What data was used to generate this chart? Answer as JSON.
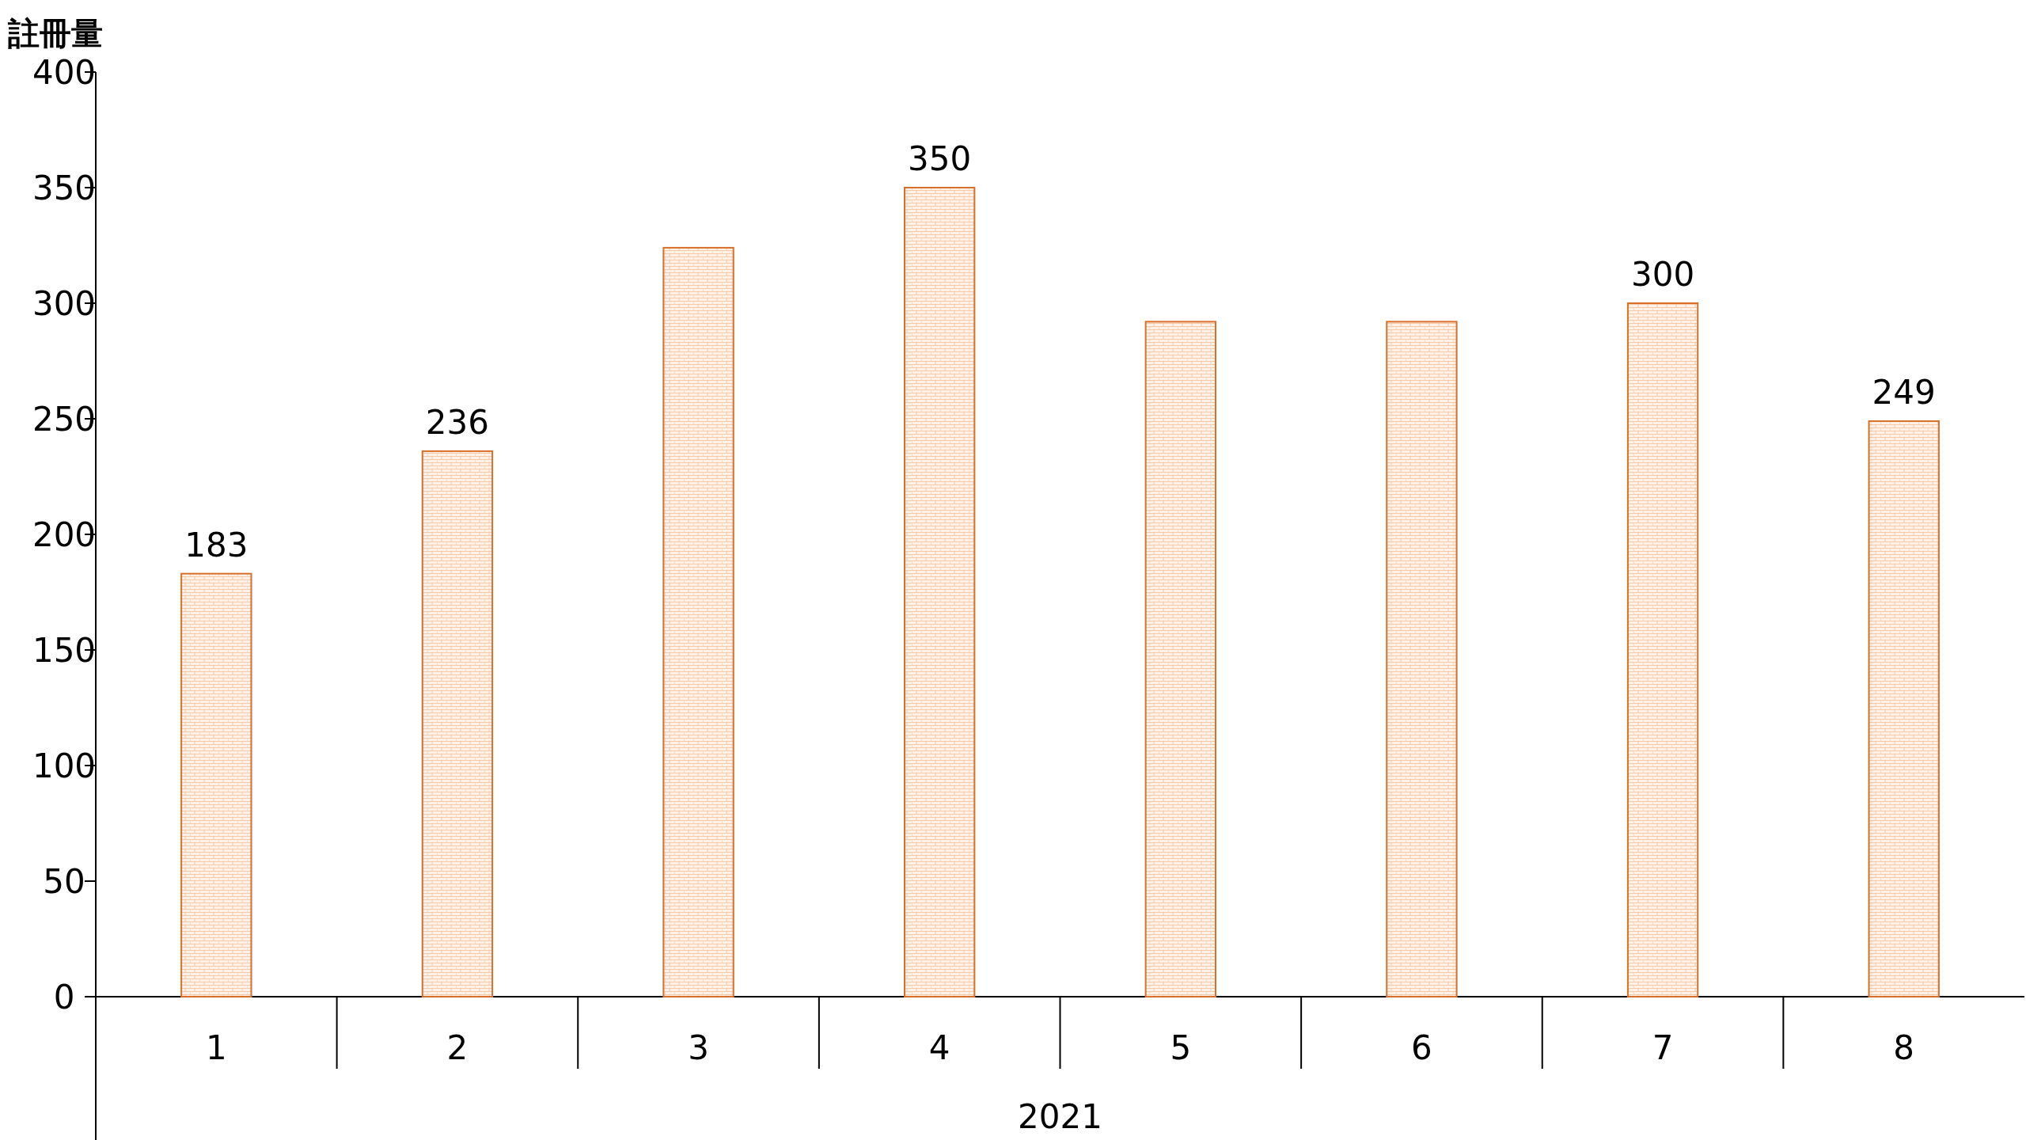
{
  "chart_data": {
    "type": "bar",
    "ylabel": "註冊量",
    "xlabel": "2021",
    "categories": [
      "1",
      "2",
      "3",
      "4",
      "5",
      "6",
      "7",
      "8"
    ],
    "values": [
      183,
      236,
      324,
      350,
      292,
      292,
      300,
      249
    ],
    "value_labels": [
      "183",
      "236",
      null,
      "350",
      null,
      null,
      "300",
      "249"
    ],
    "color": "#d86f2a",
    "ylim": [
      0,
      400
    ],
    "yticks": [
      0,
      50,
      100,
      150,
      200,
      250,
      300,
      350,
      400
    ]
  }
}
